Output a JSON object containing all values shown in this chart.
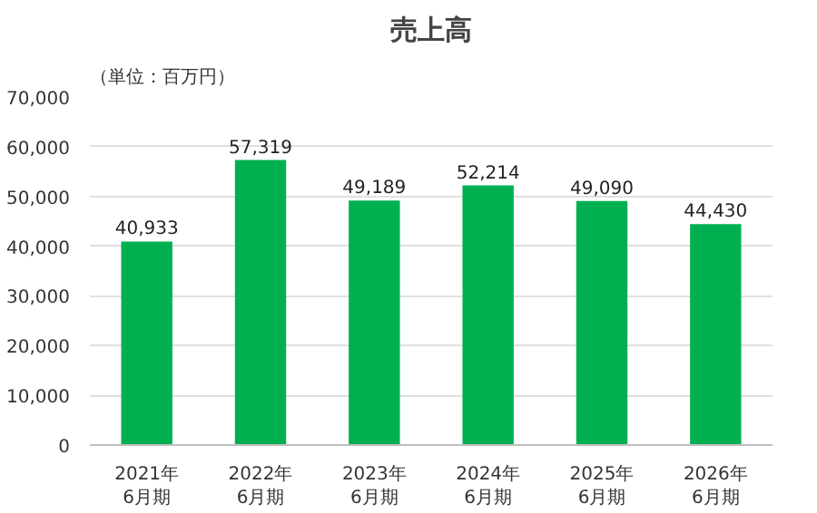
{
  "chart_data": {
    "type": "bar",
    "title": "売上高",
    "annotations": [
      "（単位：百万円）"
    ],
    "categories": [
      "2021年\n6月期",
      "2022年\n6月期",
      "2023年\n6月期",
      "2024年\n6月期",
      "2025年\n6月期",
      "2026年\n6月期"
    ],
    "values": [
      40933,
      57319,
      49189,
      52214,
      49090,
      44430
    ],
    "value_labels": [
      "40,933",
      "57,319",
      "49,189",
      "52,214",
      "49,090",
      "44,430"
    ],
    "color": "#00b050",
    "ylim": [
      0,
      70000
    ],
    "yticks": [
      {
        "value": 0,
        "label": "0"
      },
      {
        "value": 10000,
        "label": "10,000"
      },
      {
        "value": 20000,
        "label": "20,000"
      },
      {
        "value": 30000,
        "label": "30,000"
      },
      {
        "value": 40000,
        "label": "40,000"
      },
      {
        "value": 50000,
        "label": "50,000"
      },
      {
        "value": 60000,
        "label": "60,000"
      },
      {
        "value": 70000,
        "label": "70,000"
      }
    ],
    "grid": "y"
  }
}
